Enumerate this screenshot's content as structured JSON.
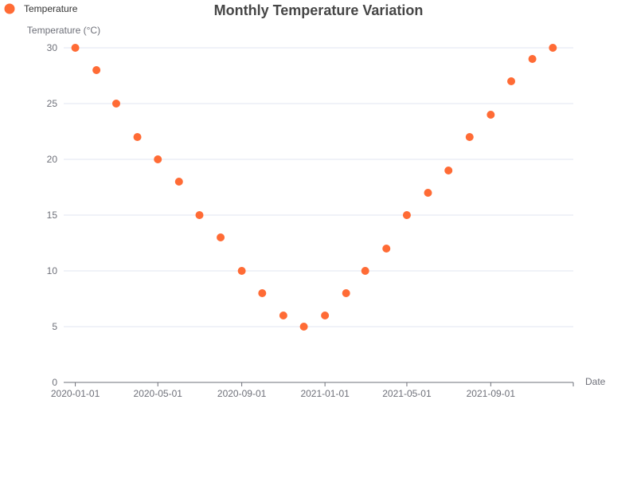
{
  "chart_data": {
    "type": "scatter",
    "title": "Monthly Temperature Variation",
    "xlabel": "Date",
    "ylabel": "Temperature (°C)",
    "ylim": [
      0,
      30
    ],
    "yticks": [
      "0",
      "5",
      "10",
      "15",
      "20",
      "25",
      "30"
    ],
    "xlim": [
      "2019-12-15",
      "2021-12-31"
    ],
    "xticks": [
      "2020-01-01",
      "2020-05-01",
      "2020-09-01",
      "2021-01-01",
      "2021-05-01",
      "2021-09-01"
    ],
    "grid": true,
    "legend_position": "top-left",
    "series": [
      {
        "name": "Temperature",
        "color": "#ff6b35",
        "x": [
          "2020-01-01",
          "2020-02-01",
          "2020-03-01",
          "2020-04-01",
          "2020-05-01",
          "2020-06-01",
          "2020-07-01",
          "2020-08-01",
          "2020-09-01",
          "2020-10-01",
          "2020-11-01",
          "2020-12-01",
          "2021-01-01",
          "2021-02-01",
          "2021-03-01",
          "2021-04-01",
          "2021-05-01",
          "2021-06-01",
          "2021-07-01",
          "2021-08-01",
          "2021-09-01",
          "2021-10-01",
          "2021-11-01",
          "2021-12-01"
        ],
        "values": [
          30,
          28,
          25,
          22,
          20,
          18,
          15,
          13,
          10,
          8,
          6,
          5,
          6,
          8,
          10,
          12,
          15,
          17,
          19,
          22,
          24,
          27,
          29,
          30
        ]
      }
    ]
  }
}
